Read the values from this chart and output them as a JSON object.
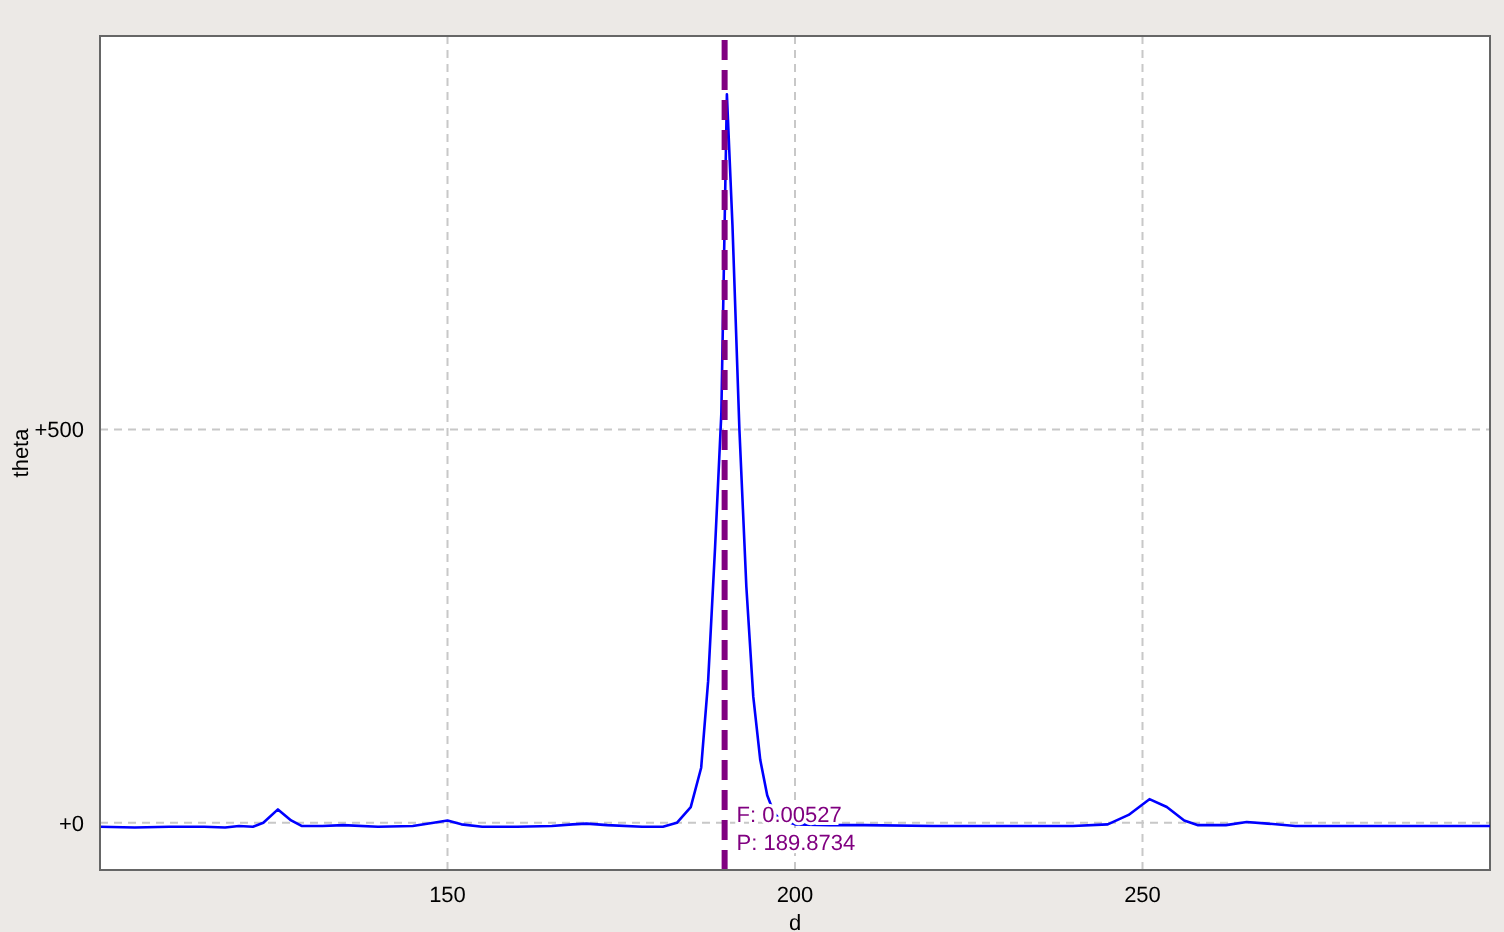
{
  "chart_data": {
    "type": "line",
    "xlabel": "d",
    "ylabel": "theta",
    "x": [
      100,
      105,
      110,
      115,
      118,
      120,
      122,
      123.5,
      125.6,
      127.5,
      129,
      132,
      135,
      140,
      145,
      148,
      150,
      152,
      155,
      160,
      165,
      168,
      170,
      173,
      178,
      181,
      183,
      185,
      186.5,
      187.5,
      188.5,
      189.4,
      190.2,
      191,
      192,
      193,
      194,
      195,
      196,
      197,
      198,
      200,
      205,
      210,
      220,
      230,
      240,
      245,
      248,
      251,
      253.5,
      256,
      258,
      262,
      265,
      268,
      272,
      280,
      290,
      300
    ],
    "series": [
      {
        "color": "#0000ff",
        "values": [
          -5,
          -6,
          -5,
          -5,
          -6,
          -4,
          -5,
          0,
          17,
          3,
          -4,
          -4,
          -3,
          -5,
          -4,
          0,
          3,
          -2,
          -5,
          -5,
          -4,
          -2,
          -1,
          -3,
          -5,
          -5,
          0,
          20,
          70,
          180,
          350,
          520,
          926,
          760,
          500,
          300,
          160,
          80,
          35,
          12,
          4,
          -2,
          -3,
          -3,
          -4,
          -4,
          -4,
          -2,
          10,
          30,
          20,
          3,
          -3,
          -3,
          1,
          -1,
          -4,
          -4,
          -4,
          -4
        ]
      }
    ],
    "xlim": [
      100,
      300
    ],
    "ylim": [
      -60,
      1000
    ],
    "xticks": [
      150,
      200,
      250
    ],
    "yticks": [
      {
        "value": 0,
        "label": "+0"
      },
      {
        "value": 500,
        "label": "+500"
      }
    ],
    "grid": true,
    "marker": "none",
    "line_style": "solid",
    "ref_lines": [
      {
        "axis": "x",
        "value": 189.8734,
        "color": "#800080",
        "line_style": "dashed"
      }
    ],
    "annotations": [
      "F: 0.00527",
      "P: 189.8734"
    ]
  }
}
